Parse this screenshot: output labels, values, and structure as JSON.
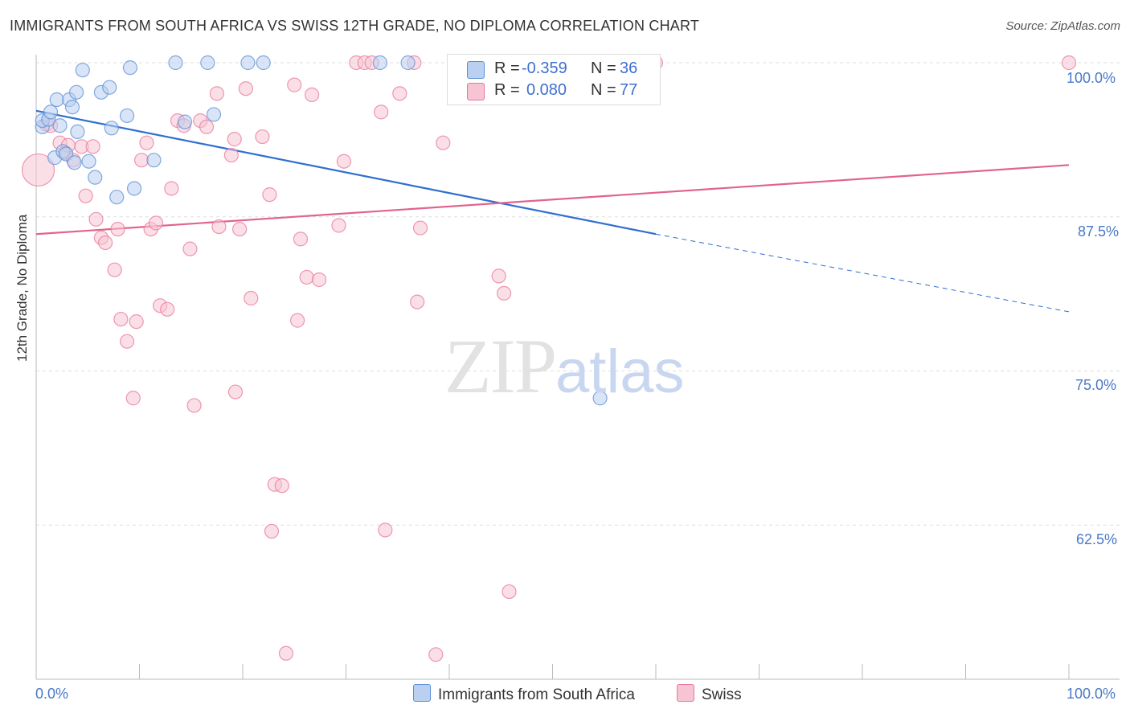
{
  "title": "IMMIGRANTS FROM SOUTH AFRICA VS SWISS 12TH GRADE, NO DIPLOMA CORRELATION CHART",
  "source": "Source: ZipAtlas.com",
  "watermark": {
    "zip": "ZIP",
    "atlas": "atlas"
  },
  "legend": {
    "series1": {
      "r_label": "R = ",
      "r_value": "-0.359",
      "n_label": "N = ",
      "n_value": "36",
      "name": "Immigrants from South Africa"
    },
    "series2": {
      "r_label": "R = ",
      "r_value": "0.080",
      "n_label": "N = ",
      "n_value": "77",
      "name": "Swiss"
    }
  },
  "colors": {
    "blue": "#5b8fd6",
    "blue_fill": "#b9d0f0",
    "pink": "#e8779a",
    "pink_fill": "#f7c4d4",
    "tick": "#4a78c8"
  },
  "chart_data": {
    "type": "scatter",
    "title": "IMMIGRANTS FROM SOUTH AFRICA VS SWISS 12TH GRADE, NO DIPLOMA CORRELATION CHART",
    "xlabel": "",
    "ylabel": "12th Grade, No Diploma",
    "xlim": [
      0,
      100
    ],
    "ylim": [
      50,
      100.5
    ],
    "x_tick_labels": [
      "0.0%",
      "100.0%"
    ],
    "y_ticks": [
      62.5,
      75.0,
      87.5,
      100.0
    ],
    "y_tick_labels": [
      "62.5%",
      "75.0%",
      "87.5%",
      "100.0%"
    ],
    "grid": true,
    "series": [
      {
        "name": "Immigrants from South Africa",
        "color": "#5b8fd6",
        "trend": {
          "x": [
            0,
            60
          ],
          "y": [
            96.1,
            86.1
          ],
          "dashed_to": [
            100,
            79.8
          ]
        },
        "points": [
          [
            0.6,
            94.8
          ],
          [
            0.6,
            95.3
          ],
          [
            1.2,
            95.4
          ],
          [
            1.4,
            96.0
          ],
          [
            1.8,
            92.3
          ],
          [
            2.0,
            97.0
          ],
          [
            2.3,
            94.9
          ],
          [
            2.6,
            92.8
          ],
          [
            2.9,
            92.6
          ],
          [
            3.2,
            97.0
          ],
          [
            3.5,
            96.4
          ],
          [
            3.7,
            91.9
          ],
          [
            3.9,
            97.6
          ],
          [
            4.0,
            94.4
          ],
          [
            4.5,
            99.4
          ],
          [
            5.1,
            92.0
          ],
          [
            5.7,
            90.7
          ],
          [
            6.3,
            97.6
          ],
          [
            7.1,
            98.0
          ],
          [
            7.3,
            94.7
          ],
          [
            7.8,
            89.1
          ],
          [
            8.8,
            95.7
          ],
          [
            9.1,
            99.6
          ],
          [
            9.5,
            89.8
          ],
          [
            11.4,
            92.1
          ],
          [
            13.5,
            100.0
          ],
          [
            14.4,
            95.2
          ],
          [
            16.6,
            100.0
          ],
          [
            17.2,
            95.8
          ],
          [
            20.5,
            100.0
          ],
          [
            22.0,
            100.0
          ],
          [
            33.3,
            100.0
          ],
          [
            36.0,
            100.0
          ],
          [
            46.4,
            100.0
          ],
          [
            54.0,
            100.0
          ],
          [
            54.6,
            72.8
          ]
        ]
      },
      {
        "name": "Swiss",
        "color": "#e8779a",
        "trend": {
          "x": [
            0,
            100
          ],
          "y": [
            86.1,
            91.7
          ]
        },
        "points": [
          [
            0.2,
            91.3
          ],
          [
            1.0,
            95.0
          ],
          [
            1.4,
            94.9
          ],
          [
            2.3,
            93.5
          ],
          [
            2.8,
            92.7
          ],
          [
            3.1,
            93.3
          ],
          [
            3.6,
            92.1
          ],
          [
            4.4,
            93.2
          ],
          [
            4.8,
            89.2
          ],
          [
            5.5,
            93.2
          ],
          [
            5.8,
            87.3
          ],
          [
            6.3,
            85.8
          ],
          [
            6.7,
            85.4
          ],
          [
            7.6,
            83.2
          ],
          [
            7.9,
            86.5
          ],
          [
            8.2,
            79.2
          ],
          [
            8.8,
            77.4
          ],
          [
            9.4,
            72.8
          ],
          [
            9.7,
            79.0
          ],
          [
            10.2,
            92.1
          ],
          [
            10.7,
            93.5
          ],
          [
            11.1,
            86.5
          ],
          [
            11.6,
            87.0
          ],
          [
            12.0,
            80.3
          ],
          [
            12.7,
            80.0
          ],
          [
            13.1,
            89.8
          ],
          [
            13.7,
            95.3
          ],
          [
            14.3,
            94.9
          ],
          [
            14.9,
            84.9
          ],
          [
            15.3,
            72.2
          ],
          [
            15.9,
            95.3
          ],
          [
            16.5,
            94.8
          ],
          [
            17.5,
            97.5
          ],
          [
            17.7,
            86.7
          ],
          [
            18.9,
            92.5
          ],
          [
            19.2,
            93.8
          ],
          [
            19.3,
            73.3
          ],
          [
            19.7,
            86.5
          ],
          [
            20.3,
            97.9
          ],
          [
            20.8,
            80.9
          ],
          [
            21.9,
            94.0
          ],
          [
            22.6,
            89.3
          ],
          [
            22.8,
            62.0
          ],
          [
            23.1,
            65.8
          ],
          [
            23.8,
            65.7
          ],
          [
            24.2,
            52.1
          ],
          [
            25.0,
            98.2
          ],
          [
            25.3,
            79.1
          ],
          [
            25.6,
            85.7
          ],
          [
            26.2,
            82.6
          ],
          [
            26.7,
            97.4
          ],
          [
            27.4,
            82.4
          ],
          [
            29.3,
            86.8
          ],
          [
            29.8,
            92.0
          ],
          [
            31.0,
            100.0
          ],
          [
            31.8,
            100.0
          ],
          [
            32.5,
            100.0
          ],
          [
            33.4,
            96.0
          ],
          [
            33.8,
            62.1
          ],
          [
            35.2,
            97.5
          ],
          [
            36.6,
            100.0
          ],
          [
            36.9,
            80.6
          ],
          [
            37.2,
            86.6
          ],
          [
            38.7,
            52.0
          ],
          [
            39.4,
            93.5
          ],
          [
            40.6,
            100.0
          ],
          [
            42.0,
            100.0
          ],
          [
            44.2,
            100.0
          ],
          [
            44.8,
            82.7
          ],
          [
            45.3,
            81.3
          ],
          [
            45.8,
            57.1
          ],
          [
            47.0,
            100.0
          ],
          [
            49.3,
            100.0
          ],
          [
            53.5,
            100.0
          ],
          [
            55.0,
            100.0
          ],
          [
            60.0,
            100.0
          ],
          [
            100.0,
            100.0
          ]
        ]
      }
    ]
  }
}
